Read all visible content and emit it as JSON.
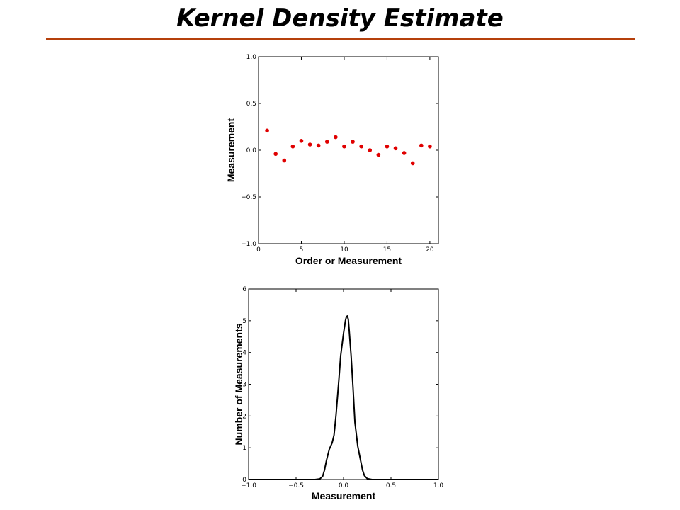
{
  "slide": {
    "title": "Kernel Density Estimate"
  },
  "colors": {
    "title_rule": "#b5400c",
    "points": "#e00000",
    "curve": "#000000"
  },
  "chart_data": [
    {
      "type": "scatter",
      "title": "",
      "xlabel": "Order or Measurement",
      "ylabel": "Measurement",
      "xlim": [
        0,
        21
      ],
      "ylim": [
        -1.0,
        1.0
      ],
      "xticks": [
        0,
        5,
        10,
        15,
        20
      ],
      "yticks": [
        -1.0,
        -0.5,
        0.0,
        0.5,
        1.0
      ],
      "xtick_labels": [
        "0",
        "5",
        "10",
        "15",
        "20"
      ],
      "ytick_labels": [
        "−1.0",
        "−0.5",
        "0.0",
        "0.5",
        "1.0"
      ],
      "grid": false,
      "series": [
        {
          "x": [
            1,
            2,
            3,
            4,
            5,
            6,
            7,
            8,
            9,
            10,
            11,
            12,
            13,
            14,
            15,
            16,
            17,
            18,
            19,
            20
          ],
          "y": [
            0.21,
            -0.04,
            -0.11,
            0.04,
            0.1,
            0.06,
            0.05,
            0.09,
            0.14,
            0.04,
            0.09,
            0.04,
            0.0,
            -0.05,
            0.04,
            0.02,
            -0.03,
            -0.14,
            0.05,
            0.04
          ]
        }
      ]
    },
    {
      "type": "line",
      "title": "",
      "xlabel": "Measurement",
      "ylabel": "Number of Measurements",
      "xlim": [
        -1.0,
        1.0
      ],
      "ylim": [
        0,
        6
      ],
      "xticks": [
        -1.0,
        -0.5,
        0.0,
        0.5,
        1.0
      ],
      "yticks": [
        0,
        1,
        2,
        3,
        4,
        5,
        6
      ],
      "xtick_labels": [
        "−1.0",
        "−0.5",
        "0.0",
        "0.5",
        "1.0"
      ],
      "ytick_labels": [
        "0",
        "1",
        "2",
        "3",
        "4",
        "5",
        "6"
      ],
      "grid": false,
      "series": [
        {
          "x": [
            -1.0,
            -0.3,
            -0.25,
            -0.22,
            -0.2,
            -0.18,
            -0.15,
            -0.12,
            -0.1,
            -0.08,
            -0.05,
            -0.03,
            0.0,
            0.02,
            0.03,
            0.04,
            0.05,
            0.06,
            0.08,
            0.1,
            0.12,
            0.15,
            0.18,
            0.2,
            0.22,
            0.25,
            0.3,
            1.0
          ],
          "y": [
            0,
            0,
            0.02,
            0.1,
            0.3,
            0.6,
            0.95,
            1.15,
            1.4,
            2.0,
            3.1,
            3.9,
            4.6,
            5.0,
            5.12,
            5.15,
            5.05,
            4.7,
            3.9,
            2.9,
            1.8,
            1.05,
            0.6,
            0.3,
            0.12,
            0.03,
            0,
            0
          ]
        }
      ]
    }
  ]
}
